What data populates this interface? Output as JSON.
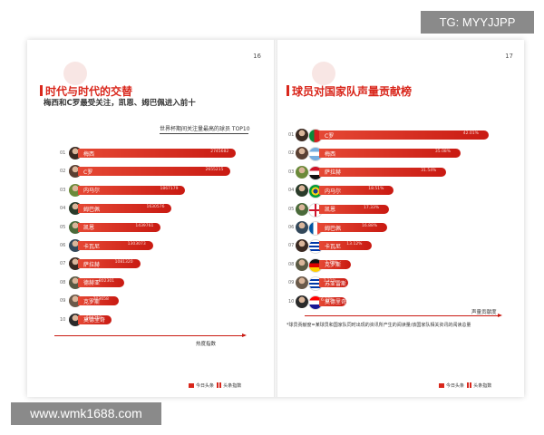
{
  "watermark_top": "TG: MYYJJPP",
  "watermark_bottom": "www.wmk1688.com",
  "left_page": {
    "page_number": "16",
    "title": "时代与时代的交替",
    "subtitle": "梅西和C罗最受关注，凯恩、姆巴佩进入前十",
    "chart_caption": "世界杯期间关注量最高的球员 TOP10",
    "axis_label": "热度指数",
    "footer_brand_1": "今日头条",
    "footer_brand_2": "头条指数"
  },
  "right_page": {
    "page_number": "17",
    "title": "球员对国家队声量贡献榜",
    "axis_label": "声量贡献度",
    "footnote": "*球员贡献度=某球员和国家队同时出现的资讯所产生的阅读量/该国家队相关资讯的阅读总量",
    "footer_brand_1": "今日头条",
    "footer_brand_2": "头条指数"
  },
  "chart_data": [
    {
      "type": "bar",
      "orientation": "horizontal",
      "title": "世界杯期间关注量最高的球员 TOP10",
      "xlabel": "热度指数",
      "ranks": [
        "01",
        "02",
        "03",
        "04",
        "05",
        "06",
        "07",
        "08",
        "09",
        "10"
      ],
      "categories": [
        "梅西",
        "C罗",
        "内马尔",
        "姆巴佩",
        "凯恩",
        "卡瓦尼",
        "萨拉赫",
        "德赫亚",
        "克罗斯",
        "莫德里奇"
      ],
      "value_labels": [
        "2745682",
        "2655215",
        "1867179",
        "1630576",
        "1439761",
        "1303073",
        "1081320",
        "802301",
        "703658",
        "580218"
      ],
      "values": [
        2745682,
        2655215,
        1867179,
        1630576,
        1439761,
        1303073,
        1081320,
        802301,
        703658,
        580218
      ],
      "xlim": [
        0,
        2900000
      ]
    },
    {
      "type": "bar",
      "orientation": "horizontal",
      "title": "球员对国家队声量贡献榜",
      "xlabel": "声量贡献度",
      "ranks": [
        "01",
        "02",
        "03",
        "04",
        "05",
        "06",
        "07",
        "08",
        "09",
        "10"
      ],
      "categories": [
        "C罗",
        "梅西",
        "萨拉赫",
        "内马尔",
        "凯恩",
        "姆巴佩",
        "卡瓦尼",
        "克罗斯",
        "苏亚雷斯",
        "莫德里奇"
      ],
      "value_labels": [
        "42.01%",
        "35.08%",
        "31.54%",
        "18.51%",
        "17.33%",
        "16.88%",
        "13.12%",
        "7.79%",
        "7.31%",
        "6.37%"
      ],
      "values": [
        42.01,
        35.08,
        31.54,
        18.51,
        17.33,
        16.88,
        13.12,
        7.79,
        7.31,
        6.37
      ],
      "xlim": [
        0,
        45
      ]
    }
  ],
  "colors": {
    "accent": "#d9271c",
    "bar_start": "#e54834",
    "bar_end": "#c91a12"
  },
  "flags": [
    "portugal",
    "argentina",
    "egypt",
    "brazil",
    "england",
    "france",
    "uruguay",
    "germany",
    "uruguay",
    "croatia"
  ]
}
